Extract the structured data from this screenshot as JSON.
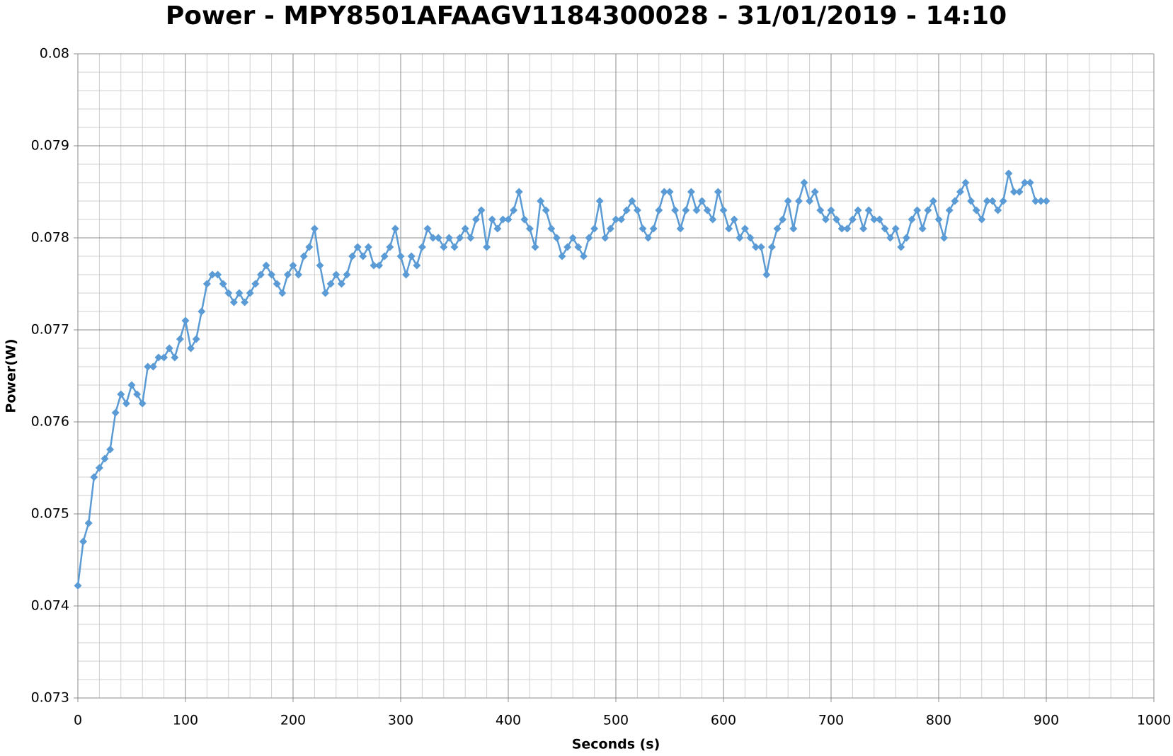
{
  "chart_data": {
    "type": "line",
    "title": "Power - MPY8501AFAAGV1184300028 - 31/01/2019 - 14:10",
    "x_label": "Seconds (s)",
    "y_label": "Power(W)",
    "xlim": [
      0,
      1000
    ],
    "xticks": [
      0,
      100,
      200,
      300,
      400,
      500,
      600,
      700,
      800,
      900,
      1000
    ],
    "ylim": [
      0.073,
      0.08
    ],
    "yticks": [
      0.073,
      0.074,
      0.075,
      0.076,
      0.077,
      0.078,
      0.079,
      0.08
    ],
    "grid": true,
    "minor_divisions": 5,
    "marker": "diamond",
    "x": [
      0,
      5,
      10,
      15,
      20,
      25,
      30,
      35,
      40,
      45,
      50,
      55,
      60,
      65,
      70,
      75,
      80,
      85,
      90,
      95,
      100,
      105,
      110,
      115,
      120,
      125,
      130,
      135,
      140,
      145,
      150,
      155,
      160,
      165,
      170,
      175,
      180,
      185,
      190,
      195,
      200,
      205,
      210,
      215,
      220,
      225,
      230,
      235,
      240,
      245,
      250,
      255,
      260,
      265,
      270,
      275,
      280,
      285,
      290,
      295,
      300,
      305,
      310,
      315,
      320,
      325,
      330,
      335,
      340,
      345,
      350,
      355,
      360,
      365,
      370,
      375,
      380,
      385,
      390,
      395,
      400,
      405,
      410,
      415,
      420,
      425,
      430,
      435,
      440,
      445,
      450,
      455,
      460,
      465,
      470,
      475,
      480,
      485,
      490,
      495,
      500,
      505,
      510,
      515,
      520,
      525,
      530,
      535,
      540,
      545,
      550,
      555,
      560,
      565,
      570,
      575,
      580,
      585,
      590,
      595,
      600,
      605,
      610,
      615,
      620,
      625,
      630,
      635,
      640,
      645,
      650,
      655,
      660,
      665,
      670,
      675,
      680,
      685,
      690,
      695,
      700,
      705,
      710,
      715,
      720,
      725,
      730,
      735,
      740,
      745,
      750,
      755,
      760,
      765,
      770,
      775,
      780,
      785,
      790,
      795,
      800,
      805,
      810,
      815,
      820,
      825,
      830,
      835,
      840,
      845,
      850,
      855,
      860,
      865,
      870,
      875,
      880,
      885,
      890,
      895,
      900
    ],
    "series": [
      {
        "name": "Power",
        "color": "#5b9bd5",
        "values": [
          0.07422,
          0.0747,
          0.0749,
          0.0754,
          0.0755,
          0.0756,
          0.0757,
          0.0761,
          0.0763,
          0.0762,
          0.0764,
          0.0763,
          0.0762,
          0.0766,
          0.0766,
          0.0767,
          0.0767,
          0.0768,
          0.0767,
          0.0769,
          0.0771,
          0.0768,
          0.0769,
          0.0772,
          0.0775,
          0.0776,
          0.0776,
          0.0775,
          0.0774,
          0.0773,
          0.0774,
          0.0773,
          0.0774,
          0.0775,
          0.0776,
          0.0777,
          0.0776,
          0.0775,
          0.0774,
          0.0776,
          0.0777,
          0.0776,
          0.0778,
          0.0779,
          0.0781,
          0.0777,
          0.0774,
          0.0775,
          0.0776,
          0.0775,
          0.0776,
          0.0778,
          0.0779,
          0.0778,
          0.0779,
          0.0777,
          0.0777,
          0.0778,
          0.0779,
          0.0781,
          0.0778,
          0.0776,
          0.0778,
          0.0777,
          0.0779,
          0.0781,
          0.078,
          0.078,
          0.0779,
          0.078,
          0.0779,
          0.078,
          0.0781,
          0.078,
          0.0782,
          0.0783,
          0.0779,
          0.0782,
          0.0781,
          0.0782,
          0.0782,
          0.0783,
          0.0785,
          0.0782,
          0.0781,
          0.0779,
          0.0784,
          0.0783,
          0.0781,
          0.078,
          0.0778,
          0.0779,
          0.078,
          0.0779,
          0.0778,
          0.078,
          0.0781,
          0.0784,
          0.078,
          0.0781,
          0.0782,
          0.0782,
          0.0783,
          0.0784,
          0.0783,
          0.0781,
          0.078,
          0.0781,
          0.0783,
          0.0785,
          0.0785,
          0.0783,
          0.0781,
          0.0783,
          0.0785,
          0.0783,
          0.0784,
          0.0783,
          0.0782,
          0.0785,
          0.0783,
          0.0781,
          0.0782,
          0.078,
          0.0781,
          0.078,
          0.0779,
          0.0779,
          0.0776,
          0.0779,
          0.0781,
          0.0782,
          0.0784,
          0.0781,
          0.0784,
          0.0786,
          0.0784,
          0.0785,
          0.0783,
          0.0782,
          0.0783,
          0.0782,
          0.0781,
          0.0781,
          0.0782,
          0.0783,
          0.0781,
          0.0783,
          0.0782,
          0.0782,
          0.0781,
          0.078,
          0.0781,
          0.0779,
          0.078,
          0.0782,
          0.0783,
          0.0781,
          0.0783,
          0.0784,
          0.0782,
          0.078,
          0.0783,
          0.0784,
          0.0785,
          0.0786,
          0.0784,
          0.0783,
          0.0782,
          0.0784,
          0.0784,
          0.0783,
          0.0784,
          0.0787,
          0.0785,
          0.0785,
          0.0786,
          0.0786,
          0.0784,
          0.0784,
          0.0784
        ]
      }
    ]
  }
}
